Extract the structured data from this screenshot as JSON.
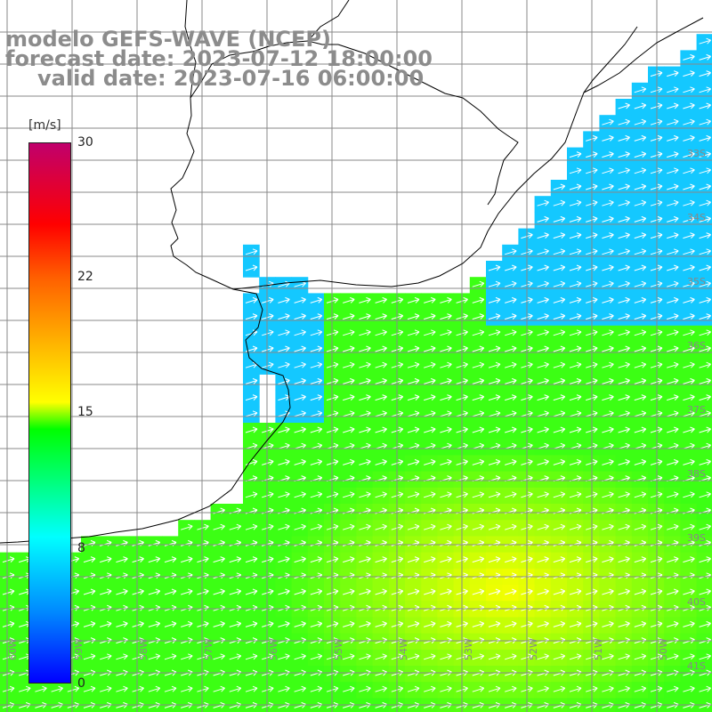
{
  "title": {
    "line1": "modelo GEFS-WAVE (NCEP)",
    "line2": "forecast date: 2023-07-12 18:00:00",
    "line3": "valid date: 2023-07-16 06:00:00"
  },
  "colorbar": {
    "unit": "[m/s]",
    "ticks": [
      "30",
      "22",
      "15",
      "8",
      "0"
    ]
  },
  "lat_labels": [
    "33S",
    "34S",
    "35S",
    "36S",
    "37S",
    "38S",
    "39S",
    "40S",
    "41S"
  ],
  "lon_labels": [
    "60W",
    "59W",
    "58W",
    "57W",
    "56W",
    "55W",
    "54W",
    "53W",
    "52W",
    "51W",
    "50W"
  ],
  "colors": {
    "land": "#ffffff",
    "coast": "#000000",
    "grid": "#888888",
    "arrow": "#ffffff",
    "title": "#8c8c8c"
  }
}
